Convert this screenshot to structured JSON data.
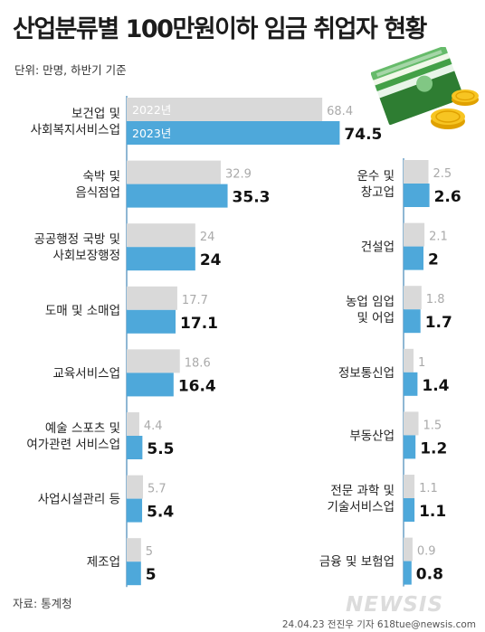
{
  "title": "산업분류별 100만원이하 임금 취업자 현황",
  "unit": "단위: 만명, 하반기 기준",
  "source": "자료: 통계청",
  "credit": "24.04.23 전진우 기자 618tue@newsis.com",
  "watermark": "NEWSIS",
  "colors": {
    "series_2022": "#d9d9d9",
    "series_2023": "#4ea8da",
    "axis": "#6a9fc6"
  },
  "chart_data": [
    {
      "type": "bar",
      "orientation": "horizontal",
      "categories": [
        "보건업 및\n사회복지서비스업",
        "숙박 및\n음식점업",
        "공공행정 국방 및\n사회보장행정",
        "도매 및 소매업",
        "교육서비스업",
        "예술 스포츠 및\n여가관련 서비스업",
        "사업시설관리 등",
        "제조업"
      ],
      "series": [
        {
          "name": "2022년",
          "values": [
            68.4,
            32.9,
            24,
            17.7,
            18.6,
            4.4,
            5.7,
            5
          ]
        },
        {
          "name": "2023년",
          "values": [
            74.5,
            35.3,
            24,
            17.1,
            16.4,
            5.5,
            5.4,
            5
          ]
        }
      ],
      "legend": "inside-first-bar"
    },
    {
      "type": "bar",
      "orientation": "horizontal",
      "categories": [
        "운수 및\n창고업",
        "건설업",
        "농업 임업\n및 어업",
        "정보통신업",
        "부동산업",
        "전문 과학 및\n기술서비스업",
        "금융 및 보험업"
      ],
      "series": [
        {
          "name": "2022년",
          "values": [
            2.5,
            2.1,
            1.8,
            1,
            1.5,
            1.1,
            0.9
          ]
        },
        {
          "name": "2023년",
          "values": [
            2.6,
            2,
            1.7,
            1.4,
            1.2,
            1.1,
            0.8
          ]
        }
      ]
    }
  ]
}
